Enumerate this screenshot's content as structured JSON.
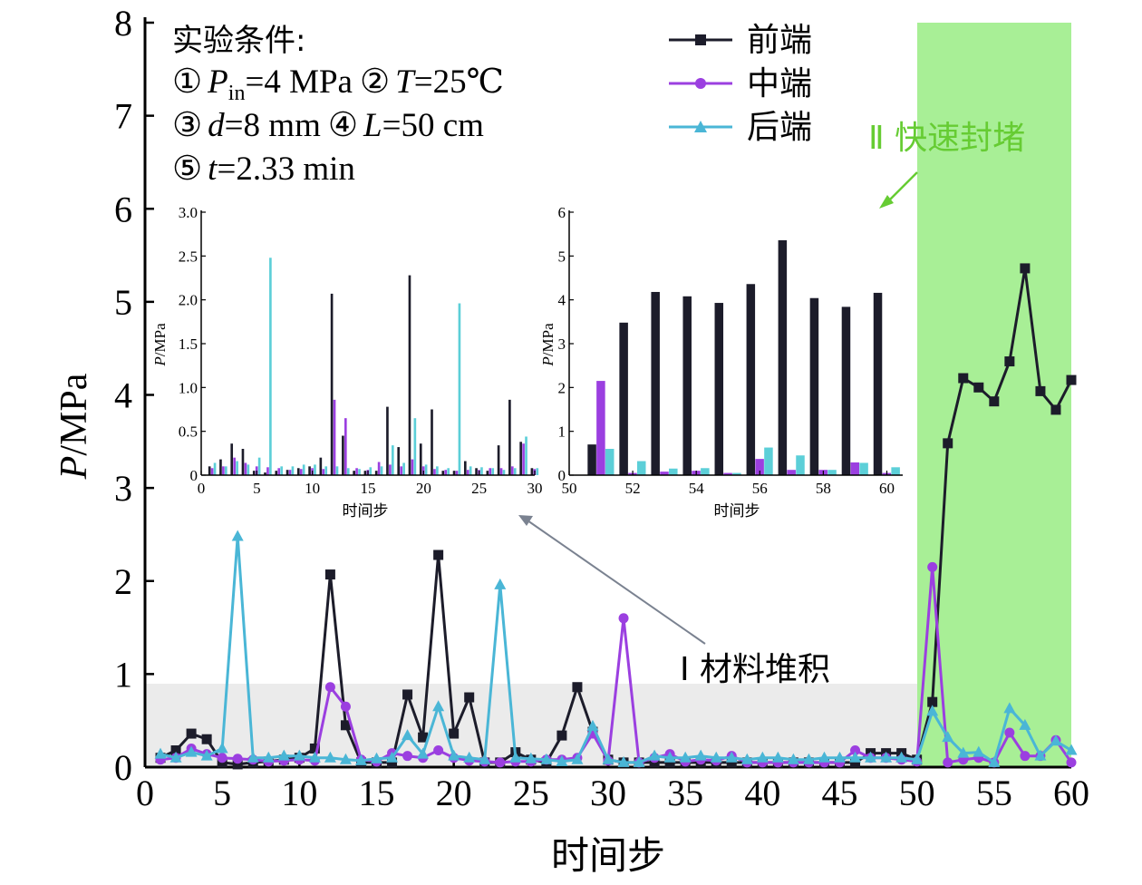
{
  "colors": {
    "front": "#1c1c2a",
    "middle": "#9b3fe0",
    "back": "#4ab6d6",
    "inset_back": "#5ccfd8",
    "region_material": "#ebebeb",
    "region_block": "#a8ef96",
    "note_green": "#66cc33",
    "arrow_gray": "#7a8290"
  },
  "conditions": {
    "heading": "实验条件:",
    "p_in_sym": "P",
    "p_in_sub": "in",
    "p_in_val": "=4 MPa",
    "t_sym": "T",
    "t_val": "=25℃",
    "d_sym": "d",
    "d_val": "=8 mm",
    "l_sym": "L",
    "l_val": "=50 cm",
    "time_sym": "t",
    "time_val": "=2.33 min",
    "markers": [
      "①",
      "②",
      "③",
      "④",
      "⑤"
    ]
  },
  "annotations": {
    "stage1": "Ⅰ 材料堆积",
    "stage2": "Ⅱ 快速封堵"
  },
  "chart_data": [
    {
      "id": "main",
      "type": "line",
      "title": "",
      "xlabel": "时间步",
      "ylabel_symbol": "P",
      "ylabel_unit": "/MPa",
      "xlim": [
        0,
        60
      ],
      "ylim": [
        0,
        8
      ],
      "xticks": [
        "0",
        "5",
        "10",
        "15",
        "20",
        "25",
        "30",
        "35",
        "40",
        "45",
        "50",
        "55",
        "60"
      ],
      "yticks": [
        "0",
        "1",
        "2",
        "3",
        "4",
        "5",
        "6",
        "7",
        "8"
      ],
      "legend_position": "top-right",
      "regions": [
        {
          "name": "材料堆积",
          "x": [
            0,
            50
          ],
          "y": [
            0,
            0.9
          ]
        },
        {
          "name": "快速封堵",
          "x": [
            50,
            60
          ],
          "y": [
            0,
            8
          ]
        }
      ],
      "series": [
        {
          "name": "前端",
          "marker": "square",
          "values": [
            0.1,
            0.18,
            0.36,
            0.3,
            0.05,
            0.03,
            0.05,
            0.06,
            0.08,
            0.1,
            0.2,
            2.07,
            0.45,
            0.05,
            0.05,
            0.05,
            0.78,
            0.32,
            2.28,
            0.36,
            0.75,
            0.05,
            0.05,
            0.16,
            0.08,
            0.05,
            0.34,
            0.86,
            0.38,
            0.08,
            0.05,
            0.05,
            0.05,
            0.05,
            0.05,
            0.05,
            0.05,
            0.05,
            0.05,
            0.05,
            0.05,
            0.05,
            0.05,
            0.05,
            0.05,
            0.05,
            0.15,
            0.15,
            0.15,
            0.08,
            0.7,
            3.48,
            4.18,
            4.08,
            3.93,
            4.36,
            5.36,
            4.04,
            3.84,
            4.16
          ]
        },
        {
          "name": "中端",
          "marker": "circle",
          "values": [
            0.08,
            0.1,
            0.2,
            0.14,
            0.1,
            0.09,
            0.08,
            0.06,
            0.07,
            0.08,
            0.07,
            0.86,
            0.65,
            0.08,
            0.06,
            0.15,
            0.12,
            0.1,
            0.18,
            0.1,
            0.07,
            0.06,
            0.05,
            0.06,
            0.06,
            0.08,
            0.08,
            0.1,
            0.36,
            0.07,
            1.6,
            0.05,
            0.1,
            0.14,
            0.06,
            0.08,
            0.07,
            0.12,
            0.05,
            0.05,
            0.05,
            0.05,
            0.05,
            0.05,
            0.05,
            0.18,
            0.1,
            0.1,
            0.08,
            0.06,
            2.15,
            0.05,
            0.08,
            0.1,
            0.05,
            0.37,
            0.12,
            0.12,
            0.29,
            0.05
          ]
        },
        {
          "name": "后端",
          "marker": "triangle",
          "values": [
            0.14,
            0.1,
            0.16,
            0.12,
            0.2,
            2.48,
            0.1,
            0.1,
            0.12,
            0.12,
            0.1,
            0.1,
            0.08,
            0.07,
            0.09,
            0.1,
            0.34,
            0.14,
            0.65,
            0.12,
            0.1,
            0.08,
            1.96,
            0.1,
            0.09,
            0.08,
            0.06,
            0.08,
            0.44,
            0.08,
            0.05,
            0.05,
            0.12,
            0.1,
            0.1,
            0.12,
            0.1,
            0.1,
            0.08,
            0.1,
            0.1,
            0.08,
            0.08,
            0.1,
            0.1,
            0.1,
            0.1,
            0.1,
            0.1,
            0.08,
            0.6,
            0.32,
            0.15,
            0.16,
            0.05,
            0.63,
            0.45,
            0.12,
            0.28,
            0.18
          ]
        }
      ]
    },
    {
      "id": "inset-left",
      "type": "bar",
      "xlabel": "时间步",
      "ylabel_symbol": "P",
      "ylabel_unit": "/MPa",
      "xlim": [
        0,
        30
      ],
      "ylim": [
        0,
        3.0
      ],
      "x_start": 1,
      "xticks": [
        "0",
        "5",
        "10",
        "15",
        "20",
        "25",
        "30"
      ],
      "yticks": [
        "0",
        "0.5",
        "1.0",
        "1.5",
        "2.0",
        "2.5",
        "3.0"
      ],
      "series": [
        {
          "name": "前端",
          "values": [
            0.1,
            0.18,
            0.36,
            0.3,
            0.05,
            0.03,
            0.05,
            0.06,
            0.08,
            0.1,
            0.2,
            2.07,
            0.45,
            0.05,
            0.05,
            0.05,
            0.78,
            0.32,
            2.28,
            0.36,
            0.75,
            0.05,
            0.05,
            0.16,
            0.08,
            0.05,
            0.34,
            0.86,
            0.38,
            0.08
          ]
        },
        {
          "name": "中端",
          "values": [
            0.08,
            0.1,
            0.2,
            0.14,
            0.1,
            0.09,
            0.08,
            0.06,
            0.07,
            0.08,
            0.07,
            0.86,
            0.65,
            0.08,
            0.06,
            0.15,
            0.12,
            0.1,
            0.18,
            0.1,
            0.07,
            0.06,
            0.05,
            0.06,
            0.06,
            0.08,
            0.08,
            0.1,
            0.36,
            0.07
          ]
        },
        {
          "name": "后端",
          "values": [
            0.14,
            0.1,
            0.16,
            0.12,
            0.2,
            2.48,
            0.1,
            0.1,
            0.12,
            0.12,
            0.1,
            0.1,
            0.08,
            0.07,
            0.09,
            0.1,
            0.34,
            0.14,
            0.65,
            0.12,
            0.1,
            0.08,
            1.96,
            0.1,
            0.09,
            0.08,
            0.06,
            0.08,
            0.44,
            0.08
          ]
        }
      ]
    },
    {
      "id": "inset-right",
      "type": "bar",
      "xlabel": "时间步",
      "ylabel_symbol": "P",
      "ylabel_unit": "/MPa",
      "xlim": [
        50,
        60.5
      ],
      "ylim": [
        0,
        6
      ],
      "x_start": 51,
      "xticks": [
        "50",
        "52",
        "54",
        "56",
        "58",
        "60"
      ],
      "yticks": [
        "0",
        "1",
        "2",
        "3",
        "4",
        "5",
        "6"
      ],
      "series": [
        {
          "name": "前端",
          "values": [
            0.7,
            3.48,
            4.18,
            4.08,
            3.93,
            4.36,
            5.36,
            4.04,
            3.84,
            4.16
          ]
        },
        {
          "name": "中端",
          "values": [
            2.15,
            0.05,
            0.08,
            0.1,
            0.05,
            0.37,
            0.12,
            0.12,
            0.29,
            0.05
          ]
        },
        {
          "name": "后端",
          "values": [
            0.6,
            0.32,
            0.15,
            0.16,
            0.05,
            0.63,
            0.45,
            0.12,
            0.28,
            0.18
          ]
        }
      ]
    }
  ]
}
